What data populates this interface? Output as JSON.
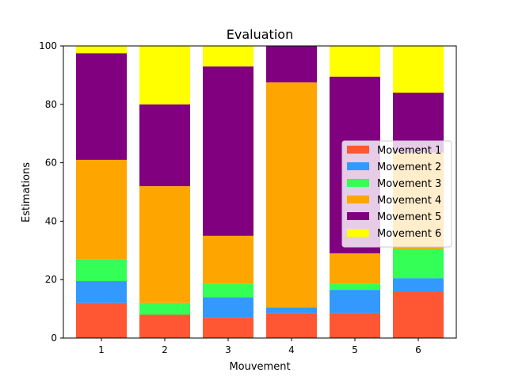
{
  "chart_data": {
    "type": "bar",
    "stacked": true,
    "title": "Evaluation",
    "xlabel": "Mouvement",
    "ylabel": "Estimations",
    "categories": [
      "1",
      "2",
      "3",
      "4",
      "5",
      "6"
    ],
    "ylim": [
      0,
      100
    ],
    "yticks": [
      0,
      20,
      40,
      60,
      80,
      100
    ],
    "grid": false,
    "legend_position": "center-right",
    "series": [
      {
        "name": "Movement 1",
        "color": "#ff5733",
        "values": [
          12,
          8,
          7,
          8.5,
          8.5,
          16
        ]
      },
      {
        "name": "Movement 2",
        "color": "#3399ff",
        "values": [
          7.5,
          0,
          7,
          2,
          8,
          4.5
        ]
      },
      {
        "name": "Movement 3",
        "color": "#33ff57",
        "values": [
          7.5,
          4,
          4.5,
          0,
          2,
          10
        ]
      },
      {
        "name": "Movement 4",
        "color": "#ffa500",
        "values": [
          34,
          40,
          16.5,
          77,
          10.5,
          33
        ]
      },
      {
        "name": "Movement 5",
        "color": "#800080",
        "values": [
          36.5,
          28,
          58,
          12.5,
          60.5,
          20.5
        ]
      },
      {
        "name": "Movement 6",
        "color": "#ffff00",
        "values": [
          2.5,
          20,
          7,
          0,
          10.5,
          16
        ]
      }
    ]
  }
}
